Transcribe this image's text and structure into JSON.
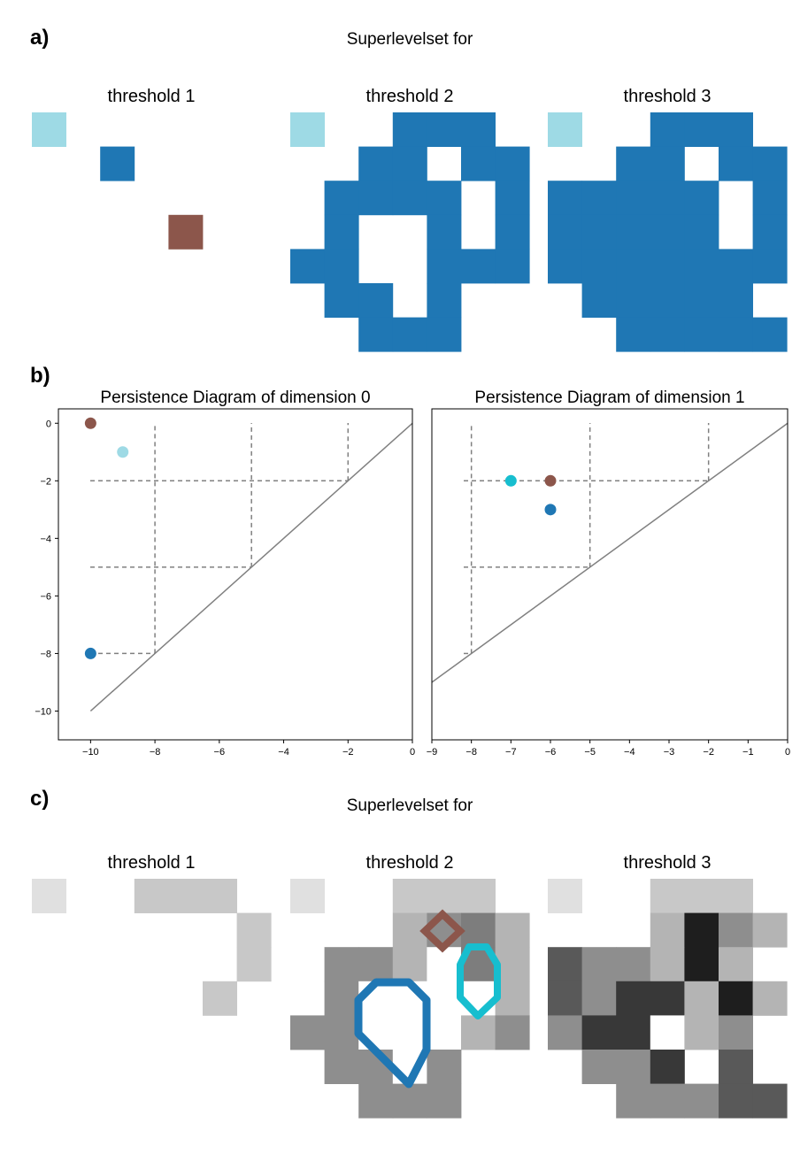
{
  "panels": {
    "a": {
      "label": "a)",
      "title": "Superlevelset for",
      "thresholds": [
        "threshold 1",
        "threshold 2",
        "threshold 3"
      ]
    },
    "b": {
      "label": "b)"
    },
    "c": {
      "label": "c)",
      "title": "Superlevelset for",
      "thresholds": [
        "threshold 1",
        "threshold 2",
        "threshold 3"
      ]
    }
  },
  "colors": {
    "dark_blue": "#1f77b4",
    "light_blue": "#9edae5",
    "brown": "#8c564b",
    "cyan": "#17becf",
    "diagonal": "#808080",
    "dashed": "#808080"
  },
  "grids_a": [
    [
      [
        0,
        0,
        "light_blue"
      ],
      [
        2,
        1,
        "dark_blue"
      ],
      [
        4,
        3,
        "brown"
      ]
    ],
    {
      "light": [
        [
          0,
          0
        ]
      ],
      "blue_rows": [
        "...XXX.",
        "..XX.XX",
        ".XXXX.X",
        ".X..X.X",
        "XX..XXX",
        ".XX.X..",
        "..XXX.."
      ]
    },
    {
      "light": [
        [
          0,
          0
        ]
      ],
      "blue_rows": [
        "...XXX.",
        "..XX.XX",
        "XXXXX.X",
        "XXXXX.X",
        "XXXXXXX",
        ".XXXXX.",
        "..XXXXX"
      ]
    }
  ],
  "grids_c": [
    [
      "a..bbb.",
      "......b",
      "......b",
      ".....b."
    ],
    [
      "a..bbb.",
      "...cdec",
      ".ddcwec",
      ".dww.wc",
      "ddwwwcd",
      ".ddwd..",
      "..ddd.."
    ],
    [
      "a..bbb.",
      "...cfdc",
      "gddcfc.",
      "gdhhcfc",
      "dhhwcd.",
      ".ddh.g.",
      "..dddgg"
    ]
  ],
  "gray_levels": {
    "a": "#e0e0e0",
    "b": "#c8c8c8",
    "c": "#b4b4b4",
    "d": "#8e8e8e",
    "e": "#7d7d7d",
    "f": "#1e1e1e",
    "g": "#595959",
    "h": "#383838",
    "w": "#ffffff"
  },
  "chart_data": [
    {
      "type": "scatter",
      "title": "Persistence Diagram of dimension 0",
      "xlim": [
        -11,
        0
      ],
      "ylim": [
        -11,
        0.5
      ],
      "xticks": [
        -10,
        -8,
        -6,
        -4,
        -2,
        0
      ],
      "yticks": [
        0,
        -2,
        -4,
        -6,
        -8,
        -10
      ],
      "points": [
        {
          "x": -10,
          "y": 0,
          "color": "brown"
        },
        {
          "x": -9,
          "y": -1,
          "color": "light_blue"
        },
        {
          "x": -10,
          "y": -8,
          "color": "dark_blue"
        }
      ],
      "diagonal": [
        [
          -10,
          -10
        ],
        [
          0,
          0
        ]
      ],
      "reference_lines": [
        {
          "x": -8,
          "y": -8
        },
        {
          "x": -5,
          "y": -5
        },
        {
          "x": -2,
          "y": -2
        }
      ]
    },
    {
      "type": "scatter",
      "title": "Persistence Diagram of dimension 1",
      "xlim": [
        -9,
        0
      ],
      "ylim": [
        -11,
        0.5
      ],
      "xticks": [
        -9,
        -8,
        -7,
        -6,
        -5,
        -4,
        -3,
        -2,
        -1,
        0
      ],
      "yticks": [],
      "points": [
        {
          "x": -7,
          "y": -2,
          "color": "cyan"
        },
        {
          "x": -6,
          "y": -2,
          "color": "brown"
        },
        {
          "x": -6,
          "y": -3,
          "color": "dark_blue"
        }
      ],
      "diagonal": [
        [
          -9,
          -9
        ],
        [
          0,
          0
        ]
      ],
      "reference_lines": [
        {
          "x": -8,
          "y": -8
        },
        {
          "x": -5,
          "y": -5
        },
        {
          "x": -2,
          "y": -2
        }
      ]
    }
  ]
}
